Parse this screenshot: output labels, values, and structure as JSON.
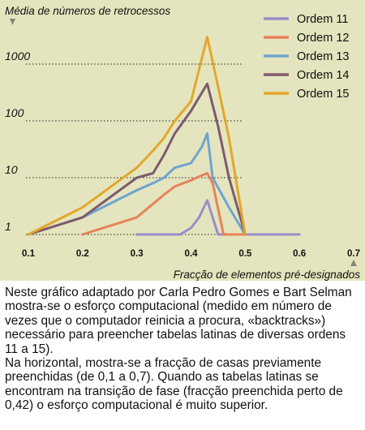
{
  "chart_data": {
    "type": "line",
    "title": "Média de números de retrocessos",
    "xlabel": "Fracção de elementos pré-designados",
    "ylabel": "Média de números de retrocessos",
    "x_ticks": [
      "0.1",
      "0.2",
      "0.3",
      "0.4",
      "0.5",
      "0.6",
      "0.7"
    ],
    "y_ticks": [
      "1",
      "10",
      "100",
      "1000"
    ],
    "xlim": [
      0.1,
      0.7
    ],
    "ylim": [
      1,
      3000
    ],
    "y_scale": "log",
    "grid": "horizontal dotted",
    "legend_position": "top-right",
    "series": [
      {
        "name": "Ordem 11",
        "color": "#9b8cc8",
        "x": [
          0.3,
          0.38,
          0.4,
          0.415,
          0.43,
          0.45,
          0.6
        ],
        "y": [
          1,
          1,
          1.3,
          2,
          4,
          1,
          1
        ]
      },
      {
        "name": "Ordem 12",
        "color": "#e8825a",
        "x": [
          0.2,
          0.3,
          0.35,
          0.37,
          0.4,
          0.42,
          0.43,
          0.44,
          0.46,
          0.5
        ],
        "y": [
          1,
          2,
          5,
          7,
          9,
          11,
          12,
          8,
          1,
          1
        ]
      },
      {
        "name": "Ordem 13",
        "color": "#6ea4cf",
        "x": [
          0.1,
          0.2,
          0.3,
          0.33,
          0.35,
          0.37,
          0.4,
          0.42,
          0.43,
          0.44,
          0.47,
          0.5
        ],
        "y": [
          1,
          2,
          6,
          8,
          10,
          15,
          18,
          35,
          60,
          10,
          3,
          1
        ]
      },
      {
        "name": "Ordem 14",
        "color": "#7e5a6e",
        "x": [
          0.1,
          0.2,
          0.3,
          0.33,
          0.35,
          0.37,
          0.4,
          0.43,
          0.45,
          0.47,
          0.5
        ],
        "y": [
          1,
          2,
          10,
          12,
          25,
          60,
          150,
          450,
          80,
          10,
          1
        ]
      },
      {
        "name": "Ordem 15",
        "color": "#e3a72c",
        "x": [
          0.1,
          0.2,
          0.3,
          0.33,
          0.35,
          0.37,
          0.4,
          0.43,
          0.45,
          0.47,
          0.5
        ],
        "y": [
          1,
          3,
          15,
          30,
          50,
          100,
          220,
          3000,
          400,
          50,
          1
        ]
      }
    ]
  },
  "caption": {
    "paragraph_1": "Neste gráfico adaptado por Carla Pedro Gomes e Bart Selman mostra-se o esforço computacional (medido em número de vezes que o computador reinicia a procura, «backtracks») necessário para preencher tabelas latinas de diversas ordens 11 a 15).",
    "paragraph_2": "Na horizontal, mostra-se a fracção de casas previamente preenchidas (de 0,1 a 0,7). Quando as tabelas latinas se encontram na transição de fase (fracção preenchida perto de 0,42) o esforço computacional é muito superior."
  }
}
